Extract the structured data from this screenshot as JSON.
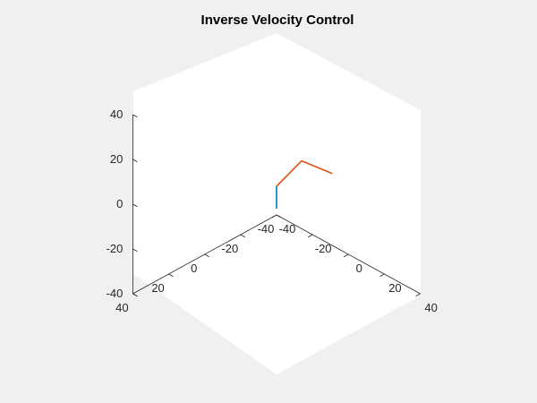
{
  "chart_data": {
    "type": "line",
    "title": "Inverse Velocity Control",
    "view": "3d",
    "xlim": [
      -40,
      40
    ],
    "ylim": [
      -40,
      40
    ],
    "zlim": [
      -40,
      40
    ],
    "x_ticks": [
      "-40",
      "-20",
      "0",
      "20",
      "40"
    ],
    "y_ticks": [
      "-40",
      "-20",
      "0",
      "20",
      "40"
    ],
    "z_ticks": [
      "-40",
      "-20",
      "0",
      "20",
      "40"
    ],
    "grid": false,
    "series": [
      {
        "color": "#0072bd",
        "x": [
          0,
          0
        ],
        "y": [
          0,
          0
        ],
        "z": [
          -2,
          8
        ]
      },
      {
        "color": "#d95319",
        "x": [
          0,
          10,
          17
        ],
        "y": [
          0,
          -4,
          -14
        ],
        "z": [
          8,
          22,
          15
        ]
      }
    ]
  }
}
